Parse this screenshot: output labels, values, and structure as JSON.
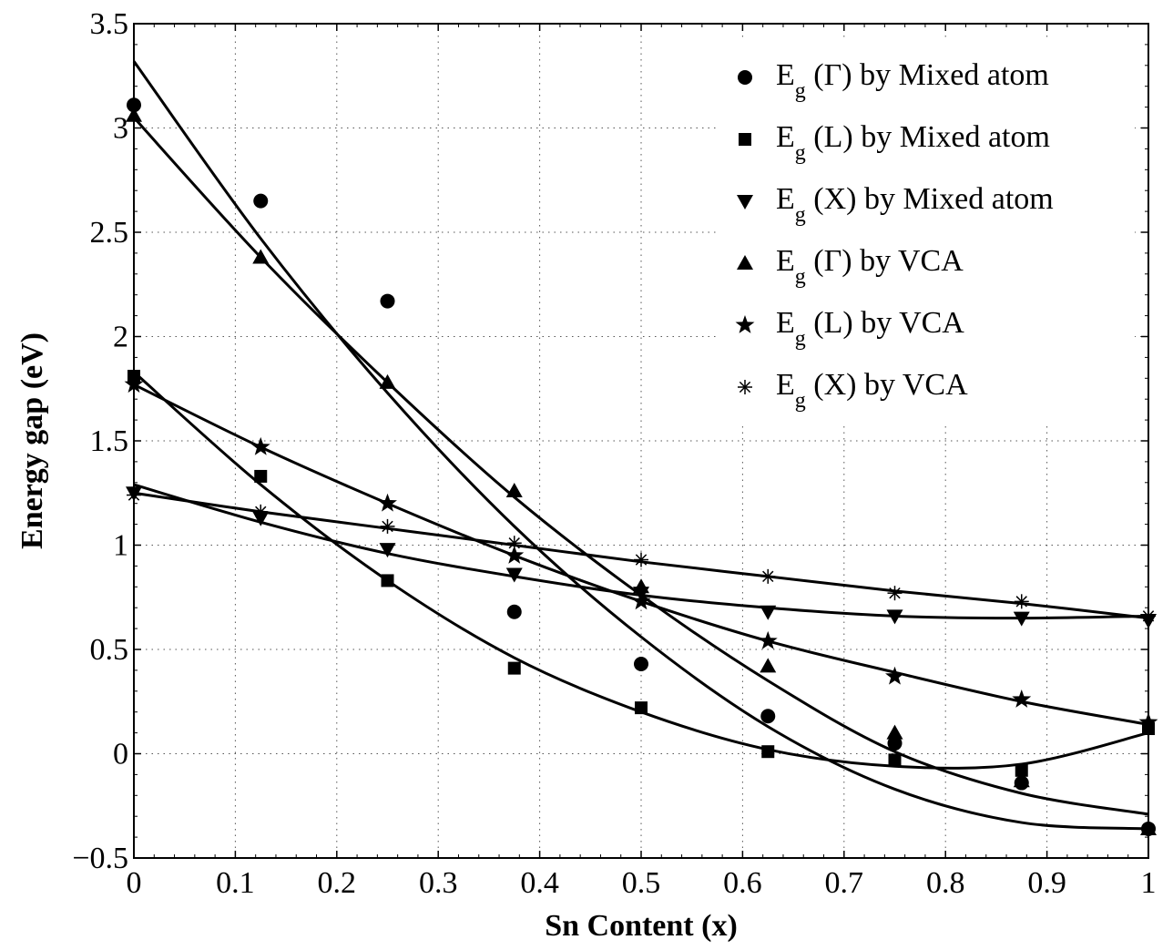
{
  "chart_data": {
    "type": "scatter",
    "xlabel": "Sn Content (x)",
    "ylabel": "Energy gap (eV)",
    "xlim": [
      0,
      1
    ],
    "ylim": [
      -0.5,
      3.5
    ],
    "x_ticks": [
      "0",
      "0.1",
      "0.2",
      "0.3",
      "0.4",
      "0.5",
      "0.6",
      "0.7",
      "0.8",
      "0.9",
      "1"
    ],
    "y_ticks": [
      "−0.5",
      "0",
      "0.5",
      "1",
      "1.5",
      "2",
      "2.5",
      "3",
      "3.5"
    ],
    "grid": true,
    "legend_position": "top-right",
    "x": [
      0,
      0.125,
      0.25,
      0.375,
      0.5,
      0.625,
      0.75,
      0.875,
      1
    ],
    "series": [
      {
        "name_main": "E",
        "name_sub": "g",
        "name_rest": " (Γ) by Mixed atom",
        "marker": "circle",
        "values": [
          3.11,
          2.65,
          2.17,
          0.68,
          0.43,
          0.18,
          0.05,
          -0.14,
          -0.36
        ]
      },
      {
        "name_main": "E",
        "name_sub": "g",
        "name_rest": " (L) by Mixed atom",
        "marker": "square",
        "values": [
          1.81,
          1.33,
          0.83,
          0.41,
          0.22,
          0.01,
          -0.03,
          -0.08,
          0.12
        ]
      },
      {
        "name_main": "E",
        "name_sub": "g",
        "name_rest": " (X) by Mixed atom",
        "marker": "triangle-down",
        "values": [
          1.25,
          1.13,
          0.98,
          0.86,
          0.77,
          0.68,
          0.66,
          0.65,
          0.64
        ]
      },
      {
        "name_main": "E",
        "name_sub": "g",
        "name_rest": " (Γ) by VCA",
        "marker": "triangle-up",
        "values": [
          3.06,
          2.38,
          1.78,
          1.26,
          0.8,
          0.42,
          0.1,
          -0.13,
          -0.36
        ]
      },
      {
        "name_main": "E",
        "name_sub": "g",
        "name_rest": " (L) by VCA",
        "marker": "star",
        "values": [
          1.77,
          1.47,
          1.2,
          0.95,
          0.73,
          0.54,
          0.37,
          0.26,
          0.15
        ]
      },
      {
        "name_main": "E",
        "name_sub": "g",
        "name_rest": " (X) by VCA",
        "marker": "asterisk",
        "values": [
          1.24,
          1.16,
          1.09,
          1.01,
          0.93,
          0.85,
          0.77,
          0.73,
          0.66
        ]
      }
    ],
    "fit_curves": [
      {
        "x": [
          0,
          0.125,
          0.25,
          0.375,
          0.5,
          0.625,
          0.75,
          0.875,
          1
        ],
        "values": [
          3.32,
          2.47,
          1.73,
          1.09,
          0.56,
          0.13,
          -0.17,
          -0.33,
          -0.36
        ]
      },
      {
        "x": [
          0,
          0.125,
          0.25,
          0.375,
          0.5,
          0.625,
          0.75,
          0.875,
          1
        ],
        "values": [
          1.83,
          1.29,
          0.83,
          0.46,
          0.2,
          0.02,
          -0.06,
          -0.05,
          0.1
        ]
      },
      {
        "x": [
          0,
          0.125,
          0.25,
          0.375,
          0.5,
          0.625,
          0.75,
          0.875,
          1
        ],
        "values": [
          1.29,
          1.11,
          0.96,
          0.85,
          0.76,
          0.7,
          0.66,
          0.65,
          0.66
        ]
      },
      {
        "x": [
          0,
          0.125,
          0.25,
          0.375,
          0.5,
          0.625,
          0.75,
          0.875,
          1
        ],
        "values": [
          3.05,
          2.38,
          1.78,
          1.23,
          0.76,
          0.35,
          0.01,
          -0.19,
          -0.29
        ]
      },
      {
        "x": [
          0,
          0.125,
          0.25,
          0.375,
          0.5,
          0.625,
          0.75,
          0.875,
          1
        ],
        "values": [
          1.77,
          1.47,
          1.2,
          0.95,
          0.73,
          0.54,
          0.39,
          0.25,
          0.14
        ]
      },
      {
        "x": [
          0,
          0.125,
          0.25,
          0.375,
          0.5,
          0.625,
          0.75,
          0.875,
          1
        ],
        "values": [
          1.25,
          1.16,
          1.08,
          1.0,
          0.92,
          0.85,
          0.78,
          0.72,
          0.65
        ]
      }
    ]
  }
}
